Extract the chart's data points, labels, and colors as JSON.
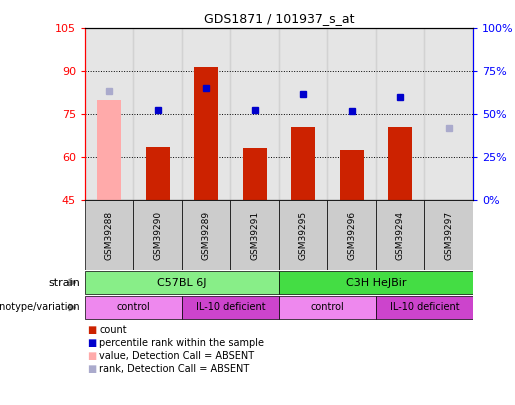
{
  "title": "GDS1871 / 101937_s_at",
  "samples": [
    "GSM39288",
    "GSM39290",
    "GSM39289",
    "GSM39291",
    "GSM39295",
    "GSM39296",
    "GSM39294",
    "GSM39297"
  ],
  "count_values": [
    null,
    63.5,
    91.5,
    63.0,
    70.5,
    62.5,
    70.5,
    null
  ],
  "count_absent": [
    80.0,
    null,
    null,
    null,
    null,
    null,
    null,
    null
  ],
  "percentile_values": [
    null,
    76.5,
    84.0,
    76.5,
    82.0,
    76.0,
    81.0,
    null
  ],
  "percentile_absent": [
    83.0,
    null,
    null,
    null,
    null,
    null,
    null,
    70.0
  ],
  "ylim_left": [
    45,
    105
  ],
  "ylim_right": [
    0,
    100
  ],
  "yticks_left": [
    45,
    60,
    75,
    90,
    105
  ],
  "yticks_right": [
    0,
    25,
    50,
    75,
    100
  ],
  "ytick_labels_left": [
    "45",
    "60",
    "75",
    "90",
    "105"
  ],
  "ytick_labels_right": [
    "0%",
    "25%",
    "50%",
    "75%",
    "100%"
  ],
  "bar_color": "#cc2200",
  "bar_absent_color": "#ffaaaa",
  "dot_color": "#0000cc",
  "dot_absent_color": "#aaaacc",
  "strain_labels": [
    "C57BL 6J",
    "C3H HeJBir"
  ],
  "strain_color": "#88ee88",
  "strain2_color": "#44dd44",
  "genotype_labels": [
    "control",
    "IL-10 deficient",
    "control",
    "IL-10 deficient"
  ],
  "genotype_color_light": "#ee88ee",
  "genotype_color_dark": "#cc44cc",
  "legend_items": [
    {
      "label": "count",
      "color": "#cc2200"
    },
    {
      "label": "percentile rank within the sample",
      "color": "#0000cc"
    },
    {
      "label": "value, Detection Call = ABSENT",
      "color": "#ffaaaa"
    },
    {
      "label": "rank, Detection Call = ABSENT",
      "color": "#aaaacc"
    }
  ],
  "bar_width": 0.5,
  "col_bg_color": "#cccccc",
  "col_bg_alpha": 0.5
}
